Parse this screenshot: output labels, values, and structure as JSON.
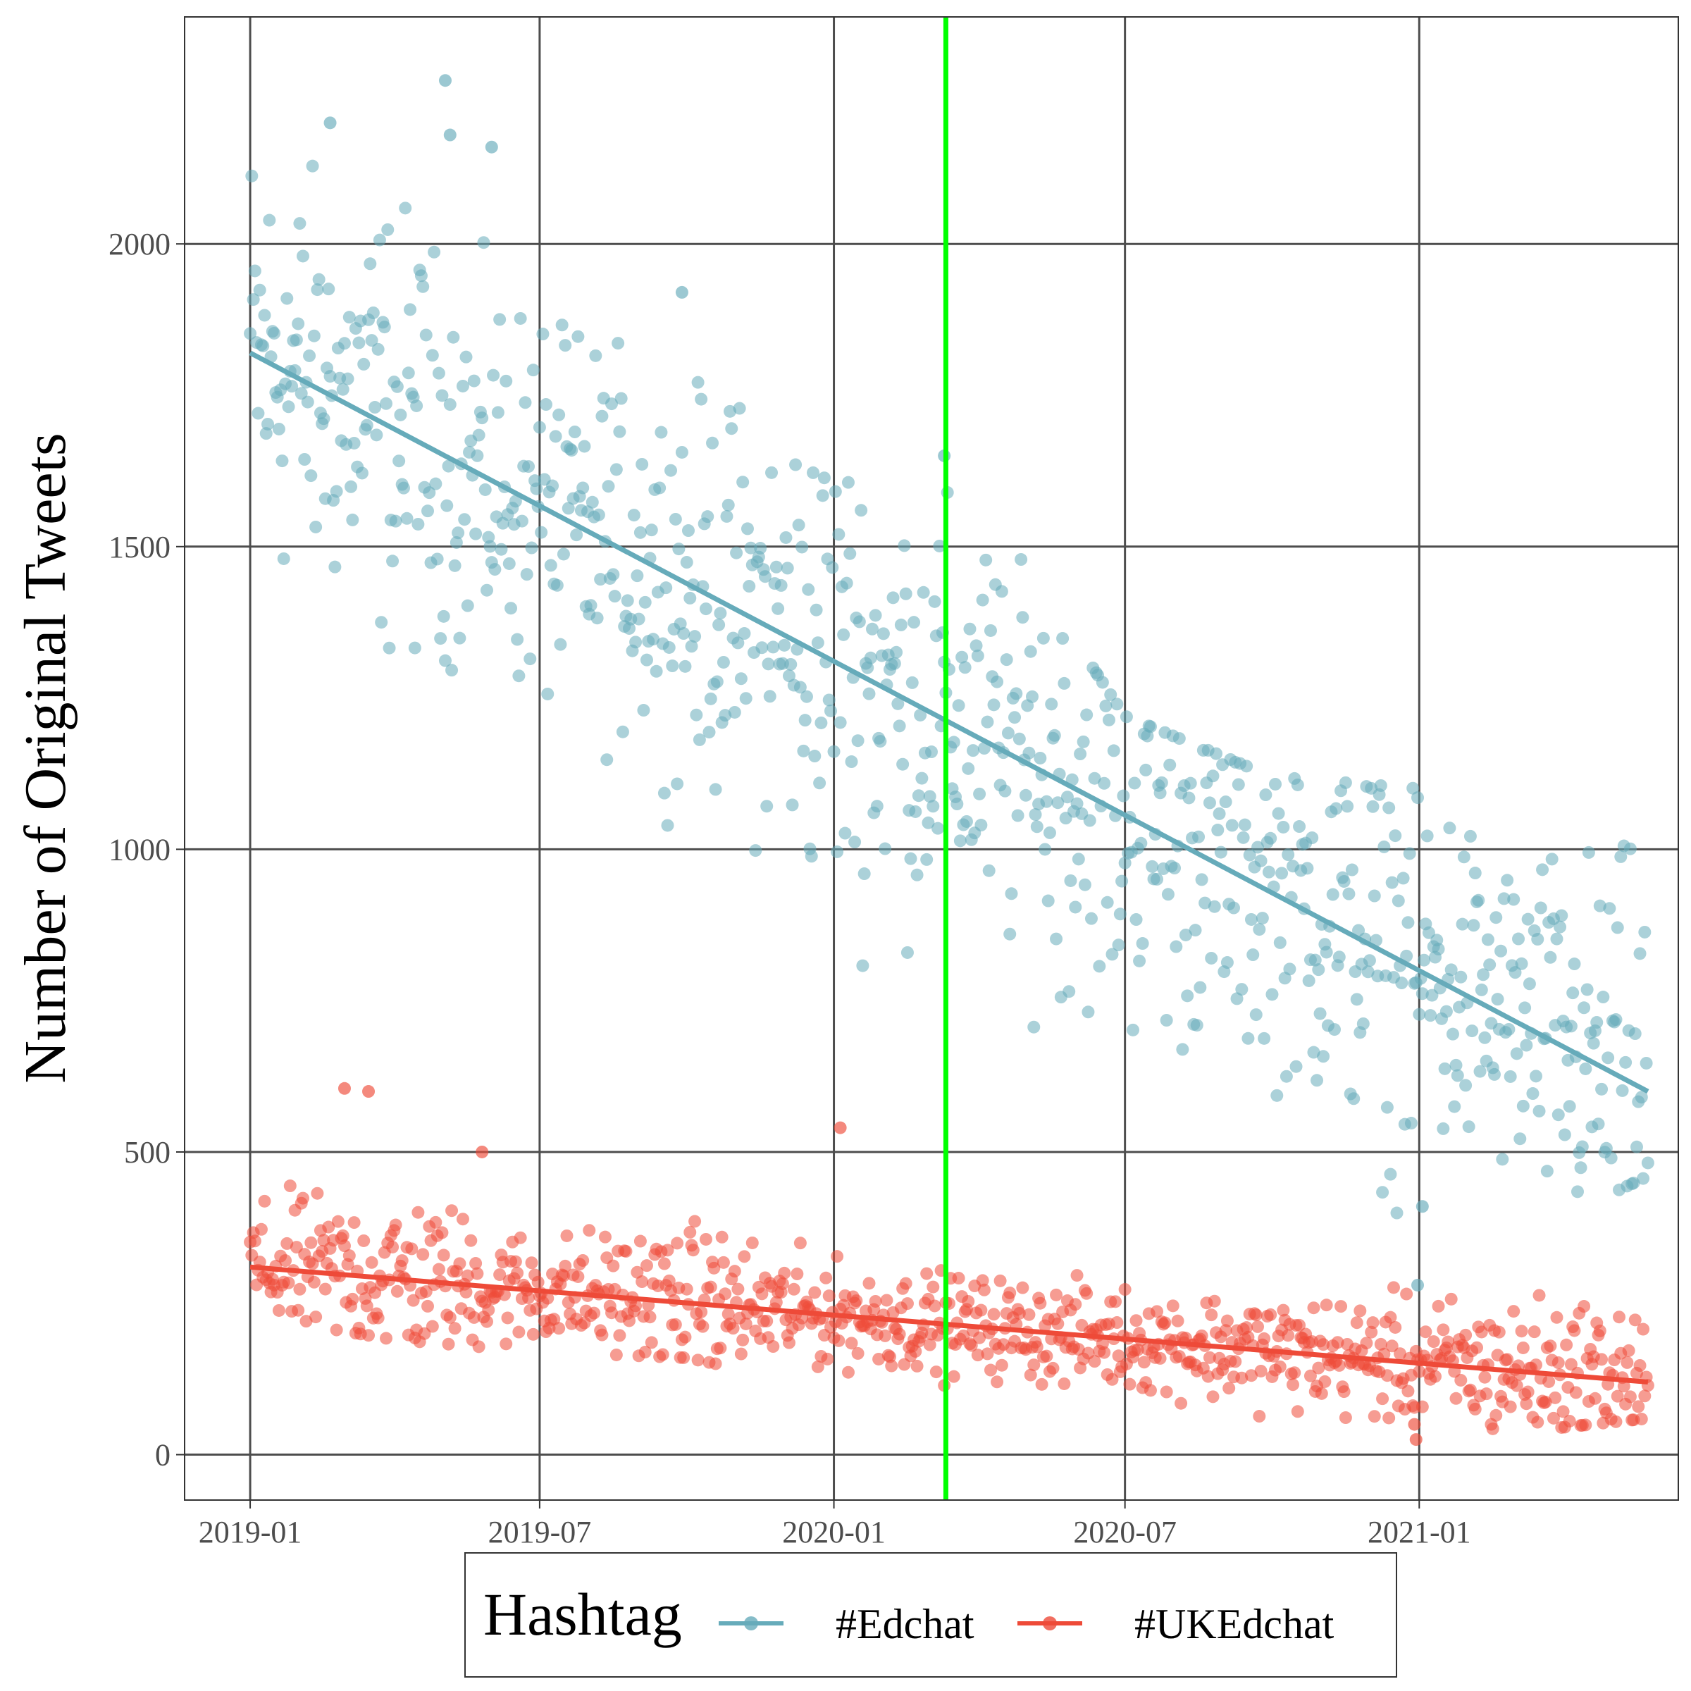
{
  "chart_data": {
    "type": "scatter",
    "title": "",
    "xlabel": "",
    "ylabel": "Number of Original Tweets",
    "x_ticks": [
      "2019-01",
      "2019-07",
      "2020-01",
      "2020-07",
      "2021-01"
    ],
    "y_ticks": [
      0,
      500,
      1000,
      1500,
      2000
    ],
    "xlim": [
      "2018-11-21",
      "2021-06-12"
    ],
    "ylim": [
      -75,
      2375
    ],
    "grid": true,
    "reference_line": {
      "x": "2020-03-11",
      "color": "#00ff00"
    },
    "legend": {
      "title": "Hashtag",
      "position": "bottom",
      "entries": [
        "#Edchat",
        "#UKEdchat"
      ]
    },
    "series": [
      {
        "name": "#Edchat",
        "color": "#66abba",
        "date_start": "2019-01-01",
        "date_end": "2021-05-24",
        "trend": {
          "start": 1820,
          "end": 600
        },
        "envelope": [
          [
            "2019-01-01",
            1300,
            2200
          ],
          [
            "2019-04-01",
            1250,
            2230
          ],
          [
            "2019-07-01",
            1100,
            1860
          ],
          [
            "2019-10-01",
            1010,
            1900
          ],
          [
            "2020-01-01",
            730,
            1600
          ],
          [
            "2020-03-15",
            730,
            1650
          ],
          [
            "2020-07-01",
            540,
            1220
          ],
          [
            "2020-10-01",
            520,
            1120
          ],
          [
            "2021-01-01",
            280,
            1100
          ],
          [
            "2021-05-24",
            460,
            1140
          ]
        ],
        "outliers": [
          [
            "2019-05-03",
            2270
          ],
          [
            "2019-02-20",
            2200
          ],
          [
            "2019-05-06",
            2180
          ],
          [
            "2019-06-01",
            2160
          ],
          [
            "2019-09-28",
            1920
          ],
          [
            "2020-03-10",
            1650
          ],
          [
            "2020-12-31",
            280
          ],
          [
            "2021-01-03",
            410
          ]
        ]
      },
      {
        "name": "#UKEdchat",
        "color": "#ee4a38",
        "date_start": "2019-01-01",
        "date_end": "2021-05-24",
        "trend": {
          "start": 310,
          "end": 120
        },
        "envelope": [
          [
            "2019-01-01",
            230,
            460
          ],
          [
            "2019-04-01",
            190,
            500
          ],
          [
            "2019-07-01",
            170,
            400
          ],
          [
            "2019-10-01",
            160,
            440
          ],
          [
            "2020-01-01",
            110,
            350
          ],
          [
            "2020-07-01",
            100,
            310
          ],
          [
            "2021-01-01",
            20,
            300
          ],
          [
            "2021-05-24",
            60,
            320
          ]
        ],
        "outliers": [
          [
            "2019-03-01",
            605
          ],
          [
            "2019-03-16",
            600
          ],
          [
            "2020-01-05",
            540
          ],
          [
            "2019-05-26",
            500
          ],
          [
            "2020-12-30",
            25
          ],
          [
            "2020-12-29",
            50
          ]
        ]
      }
    ]
  }
}
